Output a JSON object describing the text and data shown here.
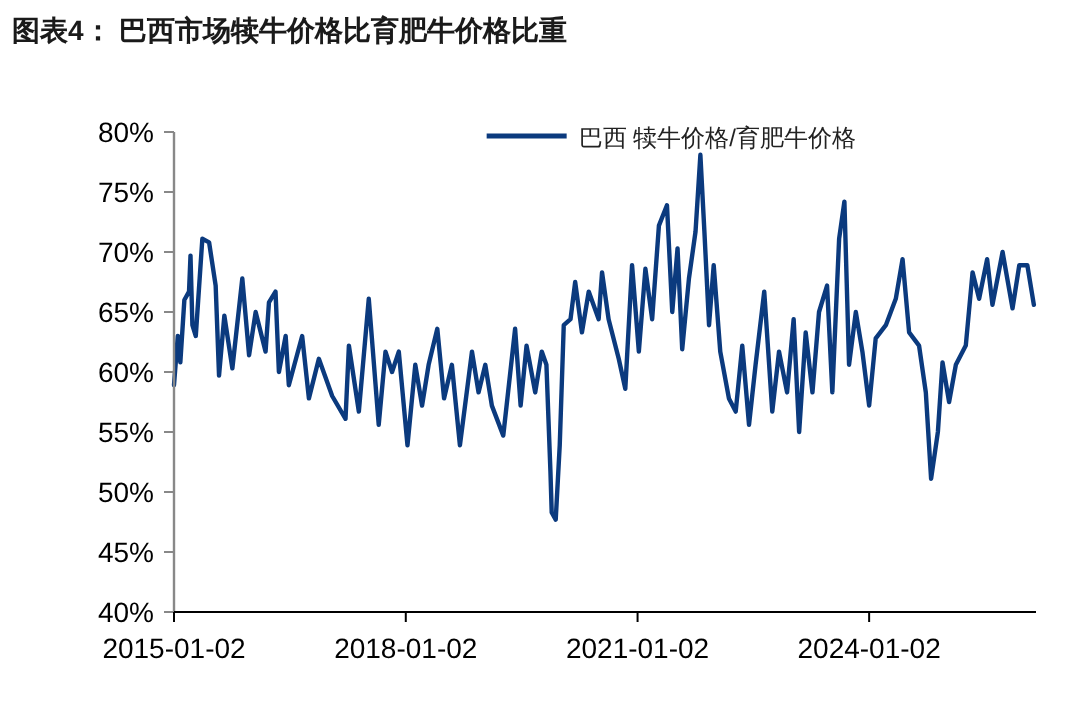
{
  "chart_data": {
    "type": "line",
    "title": "图表4：  巴西市场犊牛价格比育肥牛价格比重",
    "legend": "top right",
    "xlim": [
      "2015-01-02",
      "2026-03-01"
    ],
    "xticks": [
      "2015-01-02",
      "2018-01-02",
      "2021-01-02",
      "2024-01-02"
    ],
    "ylim": [
      40,
      80
    ],
    "yticks": [
      {
        "value": 40,
        "label": "40%"
      },
      {
        "value": 45,
        "label": "45%"
      },
      {
        "value": 50,
        "label": "50%"
      },
      {
        "value": 55,
        "label": "55%"
      },
      {
        "value": 60,
        "label": "60%"
      },
      {
        "value": 65,
        "label": "65%"
      },
      {
        "value": 70,
        "label": "70%"
      },
      {
        "value": 75,
        "label": "75%"
      },
      {
        "value": 80,
        "label": "80%"
      }
    ],
    "x": [
      "2015-01-02",
      "2015-01-20",
      "2015-02-01",
      "2015-02-20",
      "2015-03-14",
      "2015-03-21",
      "2015-03-30",
      "2015-04-15",
      "2015-05-16",
      "2015-06-17",
      "2015-07-18",
      "2015-08-03",
      "2015-08-28",
      "2015-10-05",
      "2015-11-21",
      "2015-12-23",
      "2016-01-23",
      "2016-03-10",
      "2016-03-26",
      "2016-04-26",
      "2016-05-12",
      "2016-06-13",
      "2016-06-28",
      "2016-08-30",
      "2016-10-01",
      "2016-11-17",
      "2017-01-19",
      "2017-03-23",
      "2017-04-08",
      "2017-05-25",
      "2017-07-11",
      "2017-08-27",
      "2017-09-28",
      "2017-10-29",
      "2017-11-30",
      "2018-01-10",
      "2018-02-16",
      "2018-03-20",
      "2018-04-20",
      "2018-05-31",
      "2018-07-02",
      "2018-08-08",
      "2018-09-15",
      "2018-11-11",
      "2018-12-12",
      "2019-01-13",
      "2019-02-13",
      "2019-04-08",
      "2019-06-03",
      "2019-06-29",
      "2019-07-27",
      "2019-09-06",
      "2019-10-07",
      "2019-10-29",
      "2019-11-17",
      "2019-11-23",
      "2019-12-12",
      "2019-12-31",
      "2020-01-19",
      "2020-02-20",
      "2020-03-13",
      "2020-04-14",
      "2020-05-16",
      "2020-07-02",
      "2020-07-18",
      "2020-08-18",
      "2020-10-05",
      "2020-11-05",
      "2020-12-07",
      "2021-01-08",
      "2021-02-08",
      "2021-03-12",
      "2021-04-13",
      "2021-05-21",
      "2021-06-15",
      "2021-07-10",
      "2021-08-01",
      "2021-09-02",
      "2021-10-03",
      "2021-10-26",
      "2021-11-14",
      "2021-12-06",
      "2021-12-28",
      "2022-01-28",
      "2022-03-10",
      "2022-04-11",
      "2022-05-12",
      "2022-06-13",
      "2022-07-14",
      "2022-08-24",
      "2022-10-01",
      "2022-11-02",
      "2022-12-10",
      "2023-01-10",
      "2023-02-05",
      "2023-03-08",
      "2023-04-09",
      "2023-05-10",
      "2023-06-17",
      "2023-07-12",
      "2023-08-13",
      "2023-09-07",
      "2023-09-29",
      "2023-10-31",
      "2023-12-01",
      "2024-01-02",
      "2024-02-02",
      "2024-03-21",
      "2024-05-07",
      "2024-06-08",
      "2024-07-09",
      "2024-08-25",
      "2024-09-26",
      "2024-10-21",
      "2024-11-22",
      "2024-12-14",
      "2025-01-14",
      "2025-02-15",
      "2025-04-03",
      "2025-05-05",
      "2025-06-05",
      "2025-07-13",
      "2025-08-07",
      "2025-09-24",
      "2025-11-10",
      "2025-12-12",
      "2026-01-19",
      "2026-02-19"
    ],
    "series": [
      {
        "name": "巴西  犊牛价格/育肥牛价格",
        "color": "#0b3a7e",
        "values": [
          58.9,
          63,
          60.8,
          66,
          66.7,
          69.7,
          63.9,
          63,
          71.1,
          70.8,
          67.2,
          59.7,
          64.7,
          60.3,
          67.8,
          61.4,
          65,
          61.7,
          65.8,
          66.7,
          60,
          63,
          58.9,
          63,
          57.8,
          61.1,
          58,
          56.1,
          62.2,
          56.7,
          66.1,
          55.6,
          61.7,
          60,
          61.7,
          53.9,
          60.6,
          57.2,
          60.6,
          63.6,
          57.8,
          60.6,
          53.9,
          61.7,
          58.3,
          60.6,
          57.2,
          54.7,
          63.6,
          57.2,
          62.2,
          58.3,
          61.7,
          60.6,
          51.7,
          48.3,
          47.7,
          53.9,
          63.9,
          64.4,
          67.5,
          63.3,
          66.7,
          64.4,
          68.3,
          64.4,
          61.1,
          58.6,
          68.9,
          61.7,
          68.6,
          64.4,
          72.2,
          73.9,
          65,
          70.3,
          61.9,
          67.8,
          71.7,
          78.1,
          71.7,
          63.9,
          68.9,
          61.7,
          57.8,
          56.7,
          62.2,
          55.6,
          60.6,
          66.7,
          56.7,
          61.7,
          58.3,
          64.4,
          55,
          63.3,
          58.3,
          65,
          67.2,
          58.3,
          71.1,
          74.2,
          60.6,
          65,
          61.7,
          57.2,
          62.8,
          63.9,
          66.1,
          69.4,
          63.3,
          62.2,
          58.3,
          51.1,
          55,
          60.8,
          57.5,
          60.6,
          62.2,
          68.3,
          66.1,
          69.4,
          65.6,
          70,
          65.3,
          68.9,
          68.9,
          65.6
        ]
      }
    ]
  }
}
